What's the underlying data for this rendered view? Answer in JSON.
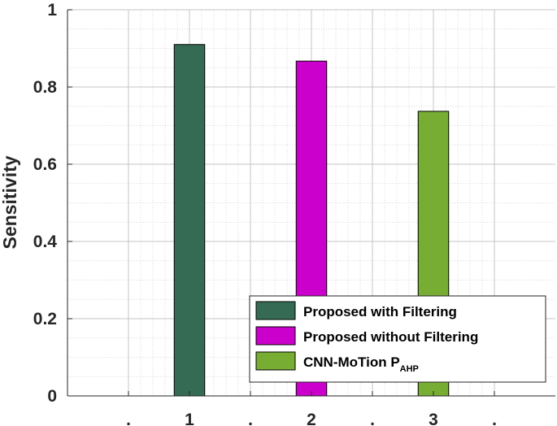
{
  "chart_data": {
    "type": "bar",
    "title": "",
    "xlabel": "",
    "ylabel": "Sensitivity",
    "ylim": [
      0,
      1
    ],
    "xlim": [
      0,
      4
    ],
    "x_ticks": [
      {
        "value": 0.5,
        "label": "."
      },
      {
        "value": 1.0,
        "label": "1"
      },
      {
        "value": 1.5,
        "label": "."
      },
      {
        "value": 2.0,
        "label": "2"
      },
      {
        "value": 2.5,
        "label": "."
      },
      {
        "value": 3.0,
        "label": "3"
      },
      {
        "value": 3.5,
        "label": "."
      }
    ],
    "y_ticks": [
      {
        "value": 0,
        "label": "0"
      },
      {
        "value": 0.2,
        "label": "0.2"
      },
      {
        "value": 0.4,
        "label": "0.4"
      },
      {
        "value": 0.6,
        "label": "0.6"
      },
      {
        "value": 0.8,
        "label": "0.8"
      },
      {
        "value": 1,
        "label": "1"
      }
    ],
    "grid": true,
    "minor_grid": true,
    "legend_position": "bottom-right",
    "bar_width": 0.25,
    "series": [
      {
        "name": "Proposed with Filtering",
        "name_sub": "",
        "x": 1,
        "value": 0.91,
        "color": "#356B55"
      },
      {
        "name": "Proposed without Filtering",
        "name_sub": "",
        "x": 2,
        "value": 0.867,
        "color": "#CC00CC"
      },
      {
        "name": "CNN-MoTion P",
        "name_sub": "AHP",
        "x": 3,
        "value": 0.737,
        "color": "#78AD34"
      }
    ]
  }
}
